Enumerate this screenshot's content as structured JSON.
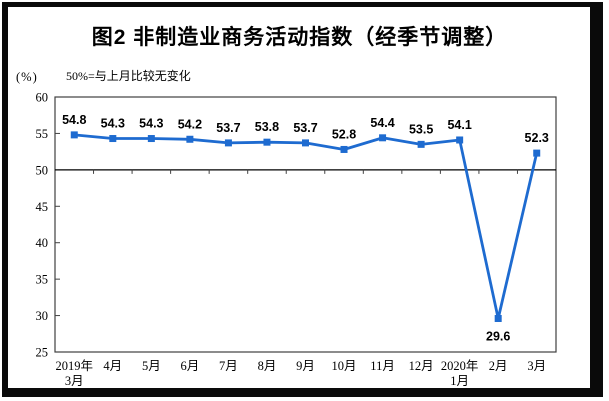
{
  "figure": {
    "title": "图2 非制造业商务活动指数（经季节调整）",
    "unit_label": "(%)",
    "note": "50%=与上月比较无变化"
  },
  "chart_data": {
    "type": "line",
    "title": "图2 非制造业商务活动指数（经季节调整）",
    "ylabel": "(%)",
    "annotation": "50%=与上月比较无变化",
    "categories": [
      "2019年|3月",
      "4月",
      "5月",
      "6月",
      "7月",
      "8月",
      "9月",
      "10月",
      "11月",
      "12月",
      "2020年|1月",
      "2月",
      "3月"
    ],
    "values": [
      54.8,
      54.3,
      54.3,
      54.2,
      53.7,
      53.8,
      53.7,
      52.8,
      54.4,
      53.5,
      54.1,
      29.6,
      52.3
    ],
    "yticks": [
      60,
      55,
      50,
      45,
      40,
      35,
      30,
      25
    ],
    "ylim": [
      25,
      60
    ],
    "reference_line": 50,
    "grid": false,
    "legend": "none",
    "data_labels": true,
    "label_below_indices": [
      11
    ],
    "line_color": "#1e6bd0",
    "axis_color": "#404040",
    "reference_line_color": "#000000"
  }
}
